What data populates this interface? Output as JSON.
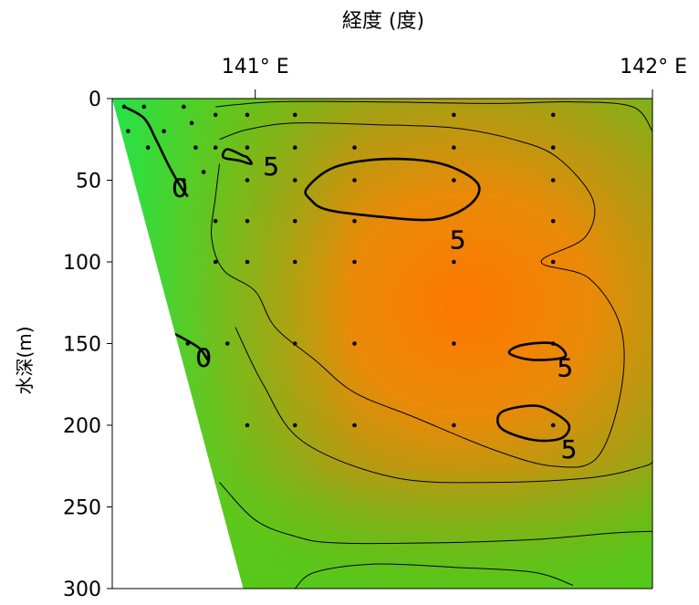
{
  "chart_data": {
    "type": "heatmap",
    "xlabel": "経度 (度)",
    "ylabel": "水深(m)",
    "x_ticks": [
      {
        "value": 141.0,
        "label": "141° E"
      },
      {
        "value": 142.0,
        "label": "142° E"
      }
    ],
    "xlim": [
      140.64,
      142.0
    ],
    "ylim": [
      0,
      300
    ],
    "y_inverted": true,
    "y_ticks": [
      0,
      50,
      100,
      150,
      200,
      250,
      300
    ],
    "colors": {
      "low": "#22dd44",
      "mid": "#7fb218",
      "high": "#ff7a00"
    },
    "bottom_edge": [
      {
        "lon": 140.64,
        "depth": 0
      },
      {
        "lon": 140.97,
        "depth": 300
      }
    ],
    "sample_points": [
      {
        "lon": 140.67,
        "depth": 5
      },
      {
        "lon": 140.72,
        "depth": 5
      },
      {
        "lon": 140.82,
        "depth": 5
      },
      {
        "lon": 140.68,
        "depth": 20
      },
      {
        "lon": 140.77,
        "depth": 20
      },
      {
        "lon": 140.84,
        "depth": 15
      },
      {
        "lon": 140.73,
        "depth": 30
      },
      {
        "lon": 140.85,
        "depth": 30
      },
      {
        "lon": 140.87,
        "depth": 45
      },
      {
        "lon": 140.82,
        "depth": 50
      },
      {
        "lon": 140.9,
        "depth": 10
      },
      {
        "lon": 140.98,
        "depth": 10
      },
      {
        "lon": 141.1,
        "depth": 10
      },
      {
        "lon": 141.5,
        "depth": 10
      },
      {
        "lon": 141.75,
        "depth": 10
      },
      {
        "lon": 140.9,
        "depth": 30
      },
      {
        "lon": 140.98,
        "depth": 30
      },
      {
        "lon": 141.1,
        "depth": 30
      },
      {
        "lon": 141.25,
        "depth": 30
      },
      {
        "lon": 141.5,
        "depth": 30
      },
      {
        "lon": 141.75,
        "depth": 30
      },
      {
        "lon": 140.98,
        "depth": 50
      },
      {
        "lon": 141.1,
        "depth": 50
      },
      {
        "lon": 141.25,
        "depth": 50
      },
      {
        "lon": 141.5,
        "depth": 50
      },
      {
        "lon": 141.75,
        "depth": 50
      },
      {
        "lon": 140.9,
        "depth": 75
      },
      {
        "lon": 140.98,
        "depth": 75
      },
      {
        "lon": 141.1,
        "depth": 75
      },
      {
        "lon": 141.25,
        "depth": 75
      },
      {
        "lon": 141.75,
        "depth": 75
      },
      {
        "lon": 140.9,
        "depth": 100
      },
      {
        "lon": 140.98,
        "depth": 100
      },
      {
        "lon": 141.1,
        "depth": 100
      },
      {
        "lon": 141.25,
        "depth": 100
      },
      {
        "lon": 141.5,
        "depth": 100
      },
      {
        "lon": 141.75,
        "depth": 100
      },
      {
        "lon": 140.83,
        "depth": 150
      },
      {
        "lon": 140.93,
        "depth": 150
      },
      {
        "lon": 141.1,
        "depth": 150
      },
      {
        "lon": 141.25,
        "depth": 150
      },
      {
        "lon": 141.5,
        "depth": 150
      },
      {
        "lon": 141.75,
        "depth": 150
      },
      {
        "lon": 140.98,
        "depth": 200
      },
      {
        "lon": 141.1,
        "depth": 200
      },
      {
        "lon": 141.25,
        "depth": 200
      },
      {
        "lon": 141.5,
        "depth": 200
      },
      {
        "lon": 141.75,
        "depth": 200
      }
    ],
    "contour_labels": [
      {
        "text": "5",
        "lon": 141.04,
        "depth": 42
      },
      {
        "text": "5",
        "lon": 141.51,
        "depth": 87
      },
      {
        "text": "5",
        "lon": 141.78,
        "depth": 165
      },
      {
        "text": "5",
        "lon": 141.79,
        "depth": 215
      },
      {
        "text": "0",
        "lon": 140.81,
        "depth": 55
      },
      {
        "text": "0",
        "lon": 140.87,
        "depth": 159
      }
    ],
    "contours": [
      {
        "level": 5,
        "bold": true,
        "points": [
          [
            141.13,
            55
          ],
          [
            141.2,
            42
          ],
          [
            141.33,
            37
          ],
          [
            141.47,
            40
          ],
          [
            141.56,
            52
          ],
          [
            141.54,
            65
          ],
          [
            141.45,
            74
          ],
          [
            141.3,
            72
          ],
          [
            141.18,
            68
          ],
          [
            141.14,
            62
          ]
        ]
      },
      {
        "level": 5,
        "bold": true,
        "points": [
          [
            141.75,
            150
          ],
          [
            141.67,
            151
          ],
          [
            141.64,
            156
          ],
          [
            141.7,
            160
          ],
          [
            141.78,
            158
          ]
        ]
      },
      {
        "level": 5,
        "bold": true,
        "points": [
          [
            141.7,
            188
          ],
          [
            141.62,
            192
          ],
          [
            141.62,
            202
          ],
          [
            141.7,
            209
          ],
          [
            141.77,
            208
          ],
          [
            141.79,
            200
          ],
          [
            141.75,
            192
          ]
        ]
      },
      {
        "level": 5,
        "bold": true,
        "points": [
          [
            140.97,
            35
          ],
          [
            140.93,
            31
          ],
          [
            140.92,
            36
          ],
          [
            140.96,
            38
          ],
          [
            140.99,
            40
          ],
          [
            140.98,
            36
          ]
        ]
      },
      {
        "level": 4,
        "bold": false,
        "points": [
          [
            140.91,
            25
          ],
          [
            140.98,
            19
          ],
          [
            141.1,
            15
          ],
          [
            141.3,
            16
          ],
          [
            141.5,
            18
          ],
          [
            141.65,
            25
          ],
          [
            141.76,
            36
          ],
          [
            141.85,
            62
          ],
          [
            141.83,
            85
          ],
          [
            141.72,
            100
          ],
          [
            141.84,
            110
          ],
          [
            141.92,
            140
          ],
          [
            141.92,
            180
          ],
          [
            141.86,
            220
          ],
          [
            141.75,
            225
          ],
          [
            141.6,
            215
          ],
          [
            141.4,
            195
          ],
          [
            141.25,
            180
          ],
          [
            141.15,
            160
          ],
          [
            141.05,
            140
          ],
          [
            141.0,
            118
          ],
          [
            140.92,
            105
          ],
          [
            140.89,
            85
          ],
          [
            140.9,
            60
          ],
          [
            140.91,
            40
          ]
        ]
      },
      {
        "level": 3,
        "bold": false,
        "points": [
          [
            140.9,
            5
          ],
          [
            141.05,
            2
          ],
          [
            141.3,
            2
          ],
          [
            141.6,
            3
          ],
          [
            141.8,
            2
          ],
          [
            141.95,
            5
          ],
          [
            142.0,
            20
          ]
        ]
      },
      {
        "level": 3,
        "bold": false,
        "points": [
          [
            140.95,
            140
          ],
          [
            141.02,
            175
          ],
          [
            141.12,
            210
          ],
          [
            141.35,
            232
          ],
          [
            141.6,
            235
          ],
          [
            141.85,
            232
          ],
          [
            141.98,
            225
          ],
          [
            142.0,
            222
          ]
        ]
      },
      {
        "level": 2,
        "bold": false,
        "points": [
          [
            140.91,
            235
          ],
          [
            141.0,
            258
          ],
          [
            141.1,
            268
          ],
          [
            141.2,
            272
          ],
          [
            141.45,
            272
          ],
          [
            141.7,
            270
          ],
          [
            141.9,
            266
          ],
          [
            142.0,
            265
          ]
        ]
      },
      {
        "level": 1,
        "bold": false,
        "points": [
          [
            141.1,
            300
          ],
          [
            141.15,
            290
          ],
          [
            141.3,
            285
          ],
          [
            141.5,
            287
          ],
          [
            141.7,
            290
          ],
          [
            141.8,
            298
          ]
        ]
      },
      {
        "level": 0,
        "bold": true,
        "points": [
          [
            140.67,
            5
          ],
          [
            140.72,
            12
          ],
          [
            140.75,
            25
          ],
          [
            140.78,
            40
          ],
          [
            140.81,
            53
          ],
          [
            140.83,
            60
          ]
        ]
      },
      {
        "level": 0,
        "bold": true,
        "points": [
          [
            140.78,
            142
          ],
          [
            140.82,
            147
          ],
          [
            140.86,
            153
          ],
          [
            140.88,
            160
          ]
        ]
      }
    ]
  }
}
